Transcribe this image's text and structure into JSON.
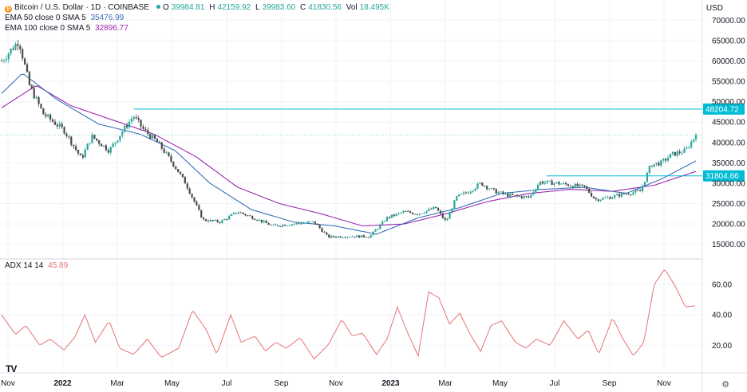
{
  "header": {
    "symbol": "Bitcoin / U.S. Dollar · 1D · COINBASE",
    "open_label": "O",
    "open": "39984.81",
    "high_label": "H",
    "high": "42159.92",
    "low_label": "L",
    "low": "39983.60",
    "close_label": "C",
    "close": "41830.56",
    "vol_label": "Vol",
    "vol": "18.495K",
    "ema50_label": "EMA 50 close 0 SMA 5",
    "ema50_value": "35476.99",
    "ema100_label": "EMA 100 close 0 SMA 5",
    "ema100_value": "32896.77",
    "currency": "USD",
    "coin_glyph": "₿",
    "logo": "TV",
    "settings_icon": "gear-icon"
  },
  "colors": {
    "up": "#26a69a",
    "down": "#4a4a4a",
    "ema50": "#3b6fb6",
    "ema100": "#9c27b0",
    "hline": "#00bcd4",
    "adx": "#e57373",
    "grid": "#f0f3fa"
  },
  "chart_data": [
    {
      "type": "candlestick",
      "title": "Bitcoin / U.S. Dollar · 1D · COINBASE",
      "x_ticks": [
        "Nov",
        "2022",
        "Mar",
        "May",
        "Jul",
        "Sep",
        "Nov",
        "2023",
        "Mar",
        "May",
        "Jul",
        "Sep",
        "Nov"
      ],
      "bold_ticks": [
        "2022",
        "2023"
      ],
      "y_ticks": [
        70000,
        65000,
        60000,
        55000,
        50000,
        45000,
        40000,
        35000,
        30000,
        25000,
        20000,
        15000
      ],
      "y_tick_labels": [
        "70000.00",
        "65000.00",
        "60000.00",
        "55000.00",
        "50000.00",
        "45000.00",
        "40000.00",
        "35000.00",
        "30000.00",
        "25000.00",
        "20000.00",
        "15000.00"
      ],
      "ylim": [
        12000,
        73000
      ],
      "price_path": [
        [
          0,
          60000
        ],
        [
          0.025,
          65000
        ],
        [
          0.04,
          54000
        ],
        [
          0.06,
          47000
        ],
        [
          0.09,
          43000
        ],
        [
          0.115,
          36000
        ],
        [
          0.13,
          41500
        ],
        [
          0.155,
          38000
        ],
        [
          0.175,
          43000
        ],
        [
          0.19,
          46500
        ],
        [
          0.205,
          43000
        ],
        [
          0.225,
          40000
        ],
        [
          0.25,
          34000
        ],
        [
          0.265,
          30000
        ],
        [
          0.29,
          21000
        ],
        [
          0.315,
          20500
        ],
        [
          0.34,
          23000
        ],
        [
          0.37,
          21000
        ],
        [
          0.39,
          19500
        ],
        [
          0.42,
          20000
        ],
        [
          0.45,
          20500
        ],
        [
          0.47,
          16800
        ],
        [
          0.5,
          17000
        ],
        [
          0.53,
          16900
        ],
        [
          0.555,
          21500
        ],
        [
          0.58,
          23000
        ],
        [
          0.6,
          22500
        ],
        [
          0.625,
          24000
        ],
        [
          0.64,
          20500
        ],
        [
          0.655,
          26500
        ],
        [
          0.675,
          28200
        ],
        [
          0.69,
          30000
        ],
        [
          0.71,
          28000
        ],
        [
          0.73,
          27000
        ],
        [
          0.76,
          26500
        ],
        [
          0.775,
          30300
        ],
        [
          0.8,
          30000
        ],
        [
          0.82,
          29500
        ],
        [
          0.84,
          29000
        ],
        [
          0.855,
          26000
        ],
        [
          0.875,
          26500
        ],
        [
          0.9,
          27500
        ],
        [
          0.92,
          28000
        ],
        [
          0.935,
          34500
        ],
        [
          0.95,
          35000
        ],
        [
          0.965,
          37000
        ],
        [
          0.975,
          37500
        ],
        [
          0.985,
          38000
        ],
        [
          1.0,
          41830
        ]
      ],
      "ema50_path": [
        [
          0,
          52000
        ],
        [
          0.03,
          57000
        ],
        [
          0.08,
          50500
        ],
        [
          0.14,
          44500
        ],
        [
          0.2,
          42000
        ],
        [
          0.25,
          38000
        ],
        [
          0.3,
          30000
        ],
        [
          0.36,
          23500
        ],
        [
          0.42,
          20500
        ],
        [
          0.48,
          19500
        ],
        [
          0.54,
          17500
        ],
        [
          0.6,
          21500
        ],
        [
          0.66,
          24000
        ],
        [
          0.72,
          27500
        ],
        [
          0.78,
          28500
        ],
        [
          0.84,
          29000
        ],
        [
          0.9,
          27500
        ],
        [
          0.95,
          31000
        ],
        [
          1.0,
          35477
        ]
      ],
      "ema100_path": [
        [
          0,
          48500
        ],
        [
          0.05,
          54000
        ],
        [
          0.1,
          49000
        ],
        [
          0.16,
          45500
        ],
        [
          0.22,
          42000
        ],
        [
          0.28,
          36500
        ],
        [
          0.34,
          29000
        ],
        [
          0.4,
          25000
        ],
        [
          0.46,
          22500
        ],
        [
          0.52,
          19500
        ],
        [
          0.58,
          20000
        ],
        [
          0.64,
          22500
        ],
        [
          0.7,
          25500
        ],
        [
          0.76,
          27500
        ],
        [
          0.82,
          28500
        ],
        [
          0.88,
          28000
        ],
        [
          0.94,
          29500
        ],
        [
          1.0,
          32897
        ]
      ],
      "horizontal_levels": [
        {
          "value": 48204.72,
          "label": "48204.72",
          "x_from": 0.19
        },
        {
          "value": 31804.66,
          "label": "31804.66",
          "x_from": 0.785
        }
      ],
      "last_price": 41830.56
    },
    {
      "type": "line",
      "title": "ADX 14 14",
      "name": "ADX 14 14",
      "value_label": "45.89",
      "y_ticks": [
        60,
        40,
        20
      ],
      "y_tick_labels": [
        "60.00",
        "40.00",
        "20.00"
      ],
      "ylim": [
        5,
        73
      ],
      "values": [
        [
          0,
          40
        ],
        [
          0.02,
          27
        ],
        [
          0.035,
          33
        ],
        [
          0.055,
          20
        ],
        [
          0.07,
          24
        ],
        [
          0.09,
          17
        ],
        [
          0.105,
          25
        ],
        [
          0.12,
          40
        ],
        [
          0.135,
          22
        ],
        [
          0.155,
          36
        ],
        [
          0.17,
          18
        ],
        [
          0.19,
          14
        ],
        [
          0.21,
          24
        ],
        [
          0.23,
          12
        ],
        [
          0.255,
          18
        ],
        [
          0.275,
          43
        ],
        [
          0.295,
          30
        ],
        [
          0.31,
          14
        ],
        [
          0.33,
          40
        ],
        [
          0.345,
          22
        ],
        [
          0.365,
          26
        ],
        [
          0.38,
          16
        ],
        [
          0.395,
          22
        ],
        [
          0.41,
          18
        ],
        [
          0.43,
          25
        ],
        [
          0.45,
          11
        ],
        [
          0.47,
          20
        ],
        [
          0.49,
          37
        ],
        [
          0.505,
          26
        ],
        [
          0.52,
          28
        ],
        [
          0.54,
          14
        ],
        [
          0.555,
          24
        ],
        [
          0.57,
          45
        ],
        [
          0.585,
          28
        ],
        [
          0.6,
          13
        ],
        [
          0.615,
          55
        ],
        [
          0.63,
          51
        ],
        [
          0.645,
          34
        ],
        [
          0.66,
          41
        ],
        [
          0.675,
          27
        ],
        [
          0.69,
          16
        ],
        [
          0.705,
          33
        ],
        [
          0.72,
          36
        ],
        [
          0.74,
          22
        ],
        [
          0.755,
          18
        ],
        [
          0.77,
          24
        ],
        [
          0.79,
          20
        ],
        [
          0.81,
          36
        ],
        [
          0.83,
          24
        ],
        [
          0.845,
          30
        ],
        [
          0.86,
          14
        ],
        [
          0.88,
          38
        ],
        [
          0.895,
          24
        ],
        [
          0.91,
          13
        ],
        [
          0.925,
          22
        ],
        [
          0.94,
          60
        ],
        [
          0.955,
          70
        ],
        [
          0.97,
          59
        ],
        [
          0.985,
          45
        ],
        [
          1.0,
          46
        ]
      ]
    }
  ]
}
